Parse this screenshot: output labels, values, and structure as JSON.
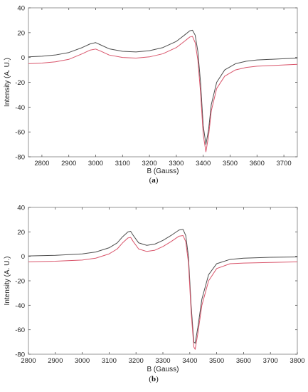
{
  "chart_data": [
    {
      "type": "line",
      "panel_label_open": "(",
      "panel_label_letter": "a",
      "panel_label_close": ")",
      "xlabel": "B (Gauss)",
      "ylabel": "Intensity (A. U.)",
      "xlim": [
        2750,
        3750
      ],
      "ylim": [
        -80,
        40
      ],
      "xticks": [
        2800,
        2900,
        3000,
        3100,
        3200,
        3300,
        3400,
        3500,
        3600,
        3700
      ],
      "yticks": [
        40,
        20,
        0,
        -20,
        -40,
        -60,
        -80
      ],
      "grid": false,
      "colors": {
        "series1": "#4d4d4d",
        "series2": "#d9556b"
      },
      "series": [
        {
          "x": [
            2750,
            2800,
            2850,
            2900,
            2950,
            2980,
            3000,
            3020,
            3050,
            3100,
            3150,
            3200,
            3250,
            3300,
            3330,
            3350,
            3360,
            3370,
            3380,
            3390,
            3400,
            3410,
            3420,
            3430,
            3450,
            3480,
            3520,
            3560,
            3600,
            3650,
            3700,
            3750
          ],
          "values": [
            0.5,
            1,
            2,
            4,
            8,
            11,
            12,
            10,
            7,
            5,
            4.5,
            5.5,
            8,
            13,
            18,
            21.5,
            22,
            18,
            5,
            -20,
            -55,
            -70,
            -58,
            -38,
            -20,
            -10,
            -5,
            -3,
            -2,
            -1.5,
            -1,
            -0.5
          ]
        },
        {
          "x": [
            2750,
            2800,
            2850,
            2900,
            2950,
            2980,
            3000,
            3020,
            3050,
            3100,
            3150,
            3200,
            3250,
            3300,
            3330,
            3350,
            3360,
            3370,
            3380,
            3390,
            3400,
            3410,
            3420,
            3430,
            3450,
            3480,
            3520,
            3560,
            3600,
            3650,
            3700,
            3750
          ],
          "values": [
            -5,
            -4.5,
            -3.5,
            -1.5,
            3,
            6,
            6.8,
            5,
            2,
            0,
            -0.5,
            0.5,
            3,
            8,
            13,
            16.5,
            17,
            12,
            -2,
            -28,
            -62,
            -76,
            -63,
            -43,
            -25,
            -15,
            -10,
            -8,
            -7,
            -6.5,
            -6,
            -5.5
          ]
        }
      ]
    },
    {
      "type": "line",
      "panel_label_open": "(",
      "panel_label_letter": "b",
      "panel_label_close": ")",
      "xlabel": "B (Gauss)",
      "ylabel": "Intensity (A. U.)",
      "xlim": [
        2800,
        3800
      ],
      "ylim": [
        -80,
        40
      ],
      "xticks": [
        2800,
        2900,
        3000,
        3100,
        3200,
        3300,
        3400,
        3500,
        3600,
        3700,
        3800
      ],
      "yticks": [
        40,
        20,
        0,
        -20,
        -40,
        -60,
        -80
      ],
      "grid": false,
      "colors": {
        "series1": "#4d4d4d",
        "series2": "#d9556b"
      },
      "series": [
        {
          "x": [
            2800,
            2900,
            3000,
            3050,
            3100,
            3130,
            3150,
            3170,
            3180,
            3190,
            3210,
            3240,
            3270,
            3300,
            3330,
            3360,
            3375,
            3385,
            3395,
            3405,
            3415,
            3420,
            3430,
            3445,
            3470,
            3500,
            3550,
            3600,
            3700,
            3800
          ],
          "values": [
            0.3,
            0.8,
            2,
            3.5,
            7,
            11,
            16,
            20,
            20.5,
            17,
            11,
            9,
            10,
            13,
            17,
            21.5,
            22,
            17,
            0,
            -40,
            -70,
            -71,
            -58,
            -35,
            -15,
            -6,
            -2.5,
            -1.5,
            -0.8,
            -0.5
          ]
        },
        {
          "x": [
            2800,
            2900,
            3000,
            3050,
            3100,
            3130,
            3150,
            3170,
            3180,
            3190,
            3210,
            3240,
            3270,
            3300,
            3330,
            3360,
            3375,
            3385,
            3395,
            3405,
            3415,
            3420,
            3430,
            3445,
            3470,
            3500,
            3550,
            3600,
            3700,
            3800
          ],
          "values": [
            -4.5,
            -4,
            -3,
            -1.5,
            2,
            6,
            11,
            15,
            15.5,
            12,
            6,
            4,
            5,
            8,
            12,
            16.5,
            17,
            12,
            -5,
            -45,
            -74,
            -76,
            -63,
            -40,
            -20,
            -10,
            -6,
            -5.5,
            -5,
            -4.5
          ]
        }
      ]
    }
  ]
}
